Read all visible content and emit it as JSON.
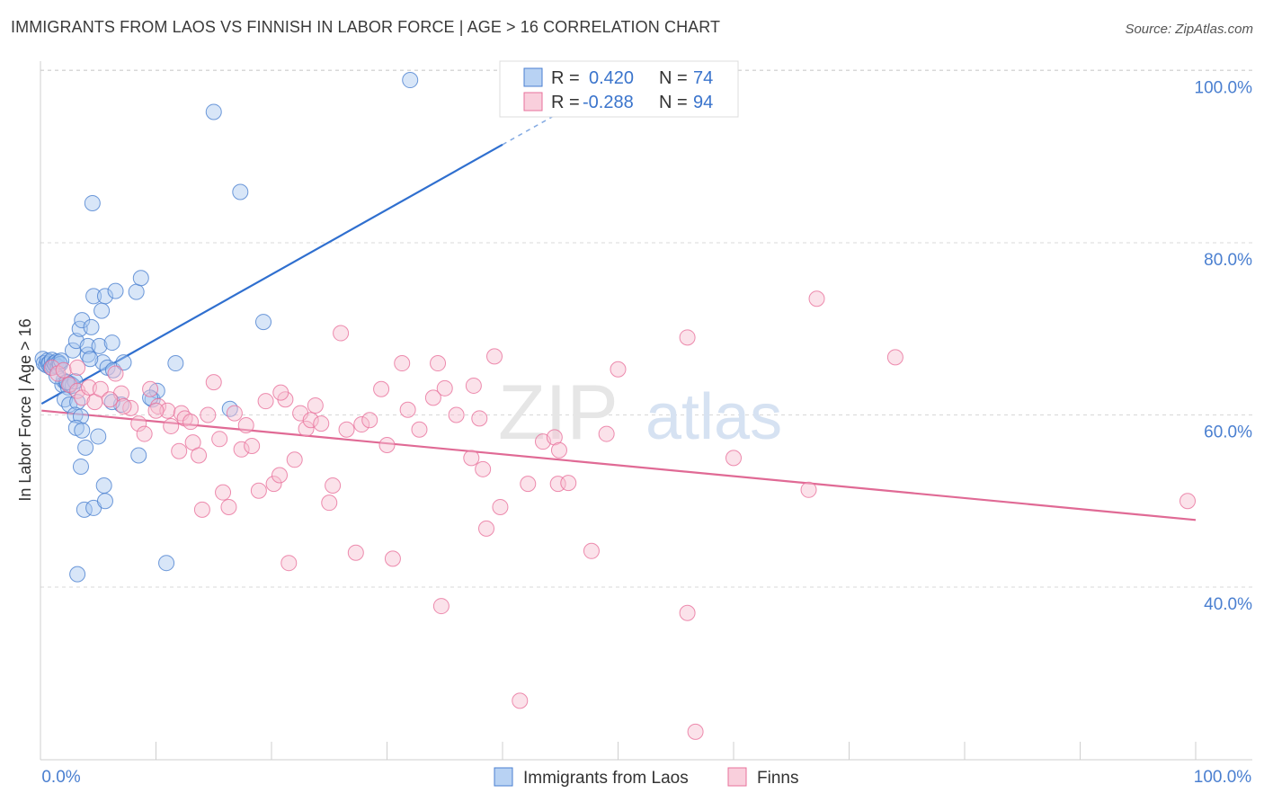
{
  "title": "IMMIGRANTS FROM LAOS VS FINNISH IN LABOR FORCE | AGE > 16 CORRELATION CHART",
  "source": "Source: ZipAtlas.com",
  "watermark": {
    "zip": "ZIP",
    "atlas": "atlas"
  },
  "colors": {
    "blue": "#4a7fd0",
    "blue_fill": "#a9c8f0",
    "blue_line": "#2f6fcf",
    "pink": "#e8719b",
    "pink_fill": "#f6bfd0",
    "pink_line": "#e06a95",
    "grid": "#d8d8d8"
  },
  "legend": [
    {
      "r_label": "R =",
      "r_value": "0.420",
      "n_label": "N =",
      "n_value": "74"
    },
    {
      "r_label": "R =",
      "r_value": "-0.288",
      "n_label": "N =",
      "n_value": "94"
    }
  ],
  "chart_data": {
    "type": "scatter",
    "title": "IMMIGRANTS FROM LAOS VS FINNISH IN LABOR FORCE | AGE > 16 CORRELATION CHART",
    "xlabel": "",
    "ylabel": "In Labor Force | Age > 16",
    "xlim": [
      0,
      100
    ],
    "ylim": [
      20,
      102
    ],
    "x_tick_labels": [
      "0.0%",
      "100.0%"
    ],
    "y_ticks": [
      40,
      60,
      80,
      100
    ],
    "y_tick_labels": [
      "40.0%",
      "60.0%",
      "80.0%",
      "100.0%"
    ],
    "grid": true,
    "series": [
      {
        "name": "Immigrants from Laos",
        "color": "blue",
        "trend": {
          "x0": 0.1,
          "y0": 61.3,
          "x1": 40.0,
          "y1": 91.4,
          "dash_to_x": 46.0,
          "dash_to_y": 95.9
        },
        "points": [
          [
            0.2,
            66.5
          ],
          [
            0.3,
            66.0
          ],
          [
            0.5,
            65.8
          ],
          [
            0.6,
            66.3
          ],
          [
            0.7,
            65.9
          ],
          [
            0.8,
            66.1
          ],
          [
            0.9,
            65.5
          ],
          [
            1.0,
            66.4
          ],
          [
            1.1,
            65.7
          ],
          [
            1.2,
            66.0
          ],
          [
            1.3,
            65.8
          ],
          [
            1.4,
            66.2
          ],
          [
            1.5,
            65.6
          ],
          [
            1.6,
            66.1
          ],
          [
            1.7,
            65.9
          ],
          [
            1.8,
            66.3
          ],
          [
            2.0,
            64.0
          ],
          [
            1.9,
            63.5
          ],
          [
            2.2,
            63.8
          ],
          [
            2.4,
            63.2
          ],
          [
            2.6,
            63.6
          ],
          [
            2.8,
            63.4
          ],
          [
            3.0,
            63.9
          ],
          [
            2.1,
            61.8
          ],
          [
            2.5,
            61.2
          ],
          [
            3.2,
            61.5
          ],
          [
            3.0,
            60.0
          ],
          [
            3.5,
            59.8
          ],
          [
            3.1,
            58.5
          ],
          [
            3.6,
            58.2
          ],
          [
            3.9,
            56.2
          ],
          [
            3.5,
            54.0
          ],
          [
            3.8,
            49.0
          ],
          [
            4.6,
            49.2
          ],
          [
            5.6,
            50.0
          ],
          [
            5.5,
            51.8
          ],
          [
            3.2,
            41.5
          ],
          [
            2.8,
            67.5
          ],
          [
            3.1,
            68.6
          ],
          [
            3.4,
            70.0
          ],
          [
            3.6,
            71.0
          ],
          [
            4.1,
            67.0
          ],
          [
            4.4,
            70.2
          ],
          [
            4.1,
            68.0
          ],
          [
            5.1,
            68.0
          ],
          [
            6.2,
            68.4
          ],
          [
            5.4,
            66.1
          ],
          [
            5.8,
            65.5
          ],
          [
            6.3,
            65.2
          ],
          [
            7.2,
            66.1
          ],
          [
            7.0,
            61.2
          ],
          [
            4.5,
            84.6
          ],
          [
            4.6,
            73.8
          ],
          [
            5.6,
            73.8
          ],
          [
            6.5,
            74.4
          ],
          [
            8.3,
            74.3
          ],
          [
            8.7,
            75.9
          ],
          [
            5.3,
            72.1
          ],
          [
            9.7,
            61.8
          ],
          [
            10.1,
            62.8
          ],
          [
            11.7,
            66.0
          ],
          [
            8.5,
            55.3
          ],
          [
            10.9,
            42.8
          ],
          [
            15.0,
            95.2
          ],
          [
            17.3,
            85.9
          ],
          [
            19.3,
            70.8
          ],
          [
            16.4,
            60.7
          ],
          [
            32.0,
            98.9
          ],
          [
            6.2,
            61.5
          ],
          [
            5.0,
            57.5
          ],
          [
            1.4,
            64.5
          ],
          [
            2.3,
            63.8
          ],
          [
            4.3,
            66.5
          ],
          [
            9.5,
            62.0
          ]
        ]
      },
      {
        "name": "Finns",
        "color": "pink",
        "trend": {
          "x0": 0.1,
          "y0": 60.5,
          "x1": 100.0,
          "y1": 47.8
        },
        "points": [
          [
            1.0,
            65.5
          ],
          [
            1.5,
            64.8
          ],
          [
            2.0,
            65.2
          ],
          [
            2.5,
            63.5
          ],
          [
            3.2,
            62.8
          ],
          [
            3.6,
            62.0
          ],
          [
            4.2,
            63.2
          ],
          [
            4.7,
            61.5
          ],
          [
            5.2,
            63.0
          ],
          [
            6.5,
            64.8
          ],
          [
            7.0,
            62.5
          ],
          [
            7.8,
            60.8
          ],
          [
            8.5,
            59.0
          ],
          [
            9.0,
            57.8
          ],
          [
            9.5,
            63.0
          ],
          [
            10.2,
            61.0
          ],
          [
            11.0,
            60.5
          ],
          [
            11.3,
            58.7
          ],
          [
            12.2,
            60.2
          ],
          [
            12.5,
            59.6
          ],
          [
            13.0,
            59.2
          ],
          [
            12.0,
            55.8
          ],
          [
            13.2,
            56.8
          ],
          [
            13.7,
            55.3
          ],
          [
            14.0,
            49.0
          ],
          [
            14.5,
            60.0
          ],
          [
            15.0,
            63.8
          ],
          [
            15.5,
            57.2
          ],
          [
            15.8,
            51.0
          ],
          [
            16.3,
            49.3
          ],
          [
            16.8,
            60.2
          ],
          [
            17.4,
            56.0
          ],
          [
            17.8,
            58.8
          ],
          [
            18.3,
            56.4
          ],
          [
            18.9,
            51.2
          ],
          [
            19.5,
            61.6
          ],
          [
            20.2,
            52.0
          ],
          [
            20.7,
            53.0
          ],
          [
            21.2,
            61.8
          ],
          [
            21.5,
            42.8
          ],
          [
            22.0,
            54.8
          ],
          [
            22.5,
            60.2
          ],
          [
            23.0,
            58.4
          ],
          [
            23.4,
            59.4
          ],
          [
            23.8,
            61.1
          ],
          [
            24.3,
            59.0
          ],
          [
            25.0,
            49.8
          ],
          [
            25.3,
            51.8
          ],
          [
            26.0,
            69.5
          ],
          [
            26.5,
            58.3
          ],
          [
            27.3,
            44.0
          ],
          [
            27.8,
            58.9
          ],
          [
            28.5,
            59.4
          ],
          [
            29.5,
            63.0
          ],
          [
            30.5,
            43.3
          ],
          [
            30.0,
            56.5
          ],
          [
            31.3,
            66.0
          ],
          [
            31.8,
            60.6
          ],
          [
            32.8,
            58.3
          ],
          [
            34.0,
            62.0
          ],
          [
            34.4,
            66.0
          ],
          [
            35.0,
            63.1
          ],
          [
            34.7,
            37.8
          ],
          [
            36.0,
            60.0
          ],
          [
            37.5,
            63.4
          ],
          [
            38.0,
            59.6
          ],
          [
            37.3,
            55.0
          ],
          [
            38.3,
            53.7
          ],
          [
            38.6,
            46.8
          ],
          [
            39.3,
            66.8
          ],
          [
            39.8,
            49.3
          ],
          [
            41.5,
            26.8
          ],
          [
            42.2,
            52.0
          ],
          [
            43.5,
            56.9
          ],
          [
            44.5,
            57.4
          ],
          [
            44.8,
            52.0
          ],
          [
            44.9,
            55.9
          ],
          [
            45.7,
            52.1
          ],
          [
            47.7,
            44.2
          ],
          [
            49.0,
            57.8
          ],
          [
            50.0,
            65.3
          ],
          [
            56.0,
            37.0
          ],
          [
            56.0,
            69.0
          ],
          [
            60.0,
            55.0
          ],
          [
            66.5,
            51.3
          ],
          [
            67.2,
            73.5
          ],
          [
            74.0,
            66.7
          ],
          [
            99.3,
            50.0
          ],
          [
            20.8,
            62.6
          ],
          [
            10.0,
            60.5
          ],
          [
            7.2,
            61.0
          ],
          [
            3.2,
            65.5
          ],
          [
            6.0,
            61.8
          ],
          [
            56.7,
            23.2
          ]
        ]
      }
    ]
  },
  "legend_bottom": [
    "Immigrants from Laos",
    "Finns"
  ]
}
